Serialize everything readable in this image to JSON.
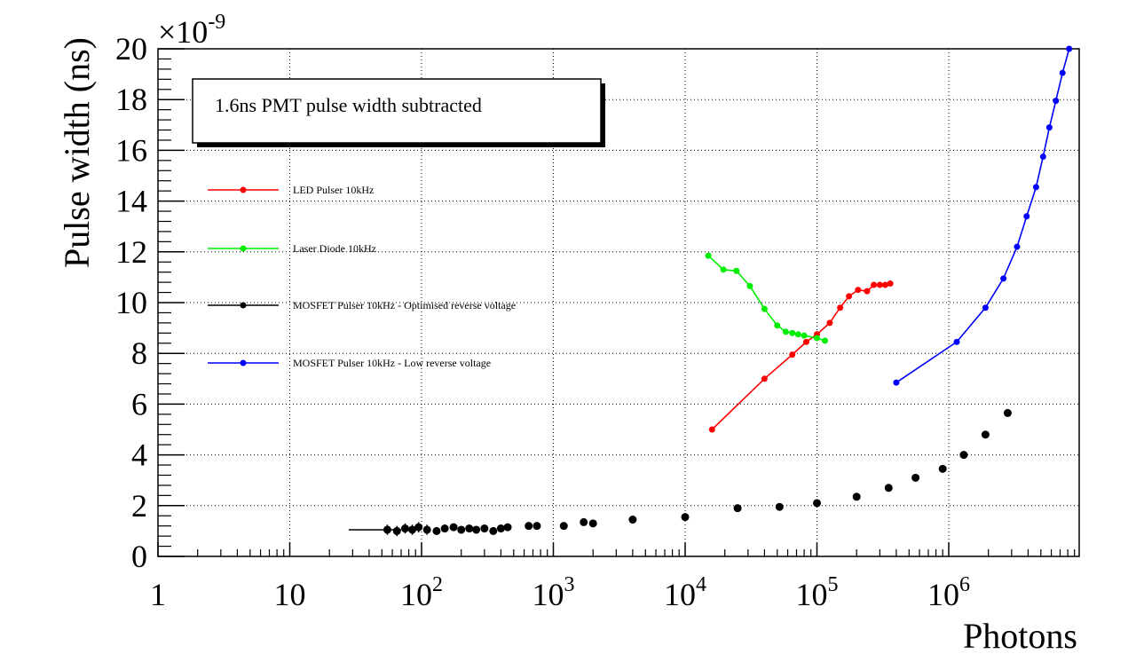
{
  "chart_data": {
    "type": "scatter",
    "title": "",
    "xlabel": "Photons",
    "ylabel": "Pulse width (ns)",
    "y_multiplier": "×10",
    "y_multiplier_exp": "-9",
    "annotation": "1.6ns PMT pulse width subtracted",
    "x_scale": "log",
    "xlim": [
      1,
      9000000
    ],
    "ylim": [
      0,
      20
    ],
    "grid": true,
    "legend_placement": "left",
    "x_ticks": [
      {
        "value": 1,
        "label": "1",
        "sup": ""
      },
      {
        "value": 10,
        "label": "10",
        "sup": ""
      },
      {
        "value": 100,
        "label": "10",
        "sup": "2"
      },
      {
        "value": 1000,
        "label": "10",
        "sup": "3"
      },
      {
        "value": 10000,
        "label": "10",
        "sup": "4"
      },
      {
        "value": 100000,
        "label": "10",
        "sup": "5"
      },
      {
        "value": 1000000,
        "label": "10",
        "sup": "6"
      }
    ],
    "y_ticks": [
      0,
      2,
      4,
      6,
      8,
      10,
      12,
      14,
      16,
      18,
      20
    ],
    "series": [
      {
        "name": "LED Pulser 10kHz",
        "color": "#ff0000",
        "line": true,
        "x": [
          16000,
          40000,
          65000,
          83000,
          100000,
          125000,
          150000,
          175000,
          205000,
          240000,
          270000,
          300000,
          330000,
          360000
        ],
        "y": [
          5.0,
          7.0,
          7.95,
          8.45,
          8.75,
          9.2,
          9.8,
          10.25,
          10.5,
          10.45,
          10.7,
          10.7,
          10.7,
          10.75
        ]
      },
      {
        "name": "Laser Diode 10kHz",
        "color": "#00ee00",
        "line": true,
        "x": [
          15000,
          19500,
          24500,
          31000,
          40000,
          50000,
          58000,
          65000,
          72000,
          80000,
          100000,
          115000
        ],
        "y": [
          11.85,
          11.3,
          11.25,
          10.65,
          9.75,
          9.1,
          8.85,
          8.8,
          8.75,
          8.7,
          8.6,
          8.5
        ]
      },
      {
        "name": "MOSFET Pulser 10kHz - Optimised reverse voltage",
        "color": "#000000",
        "line": false,
        "error_bars": true,
        "x": [
          55,
          65,
          75,
          85,
          95,
          110,
          130,
          150,
          175,
          200,
          230,
          260,
          300,
          350,
          400,
          450,
          650,
          750,
          1200,
          1700,
          2000,
          4000,
          10000,
          25000,
          52000,
          100000,
          200000,
          350000,
          560000,
          900000,
          1300000,
          1900000,
          2800000
        ],
        "y": [
          1.05,
          1.0,
          1.1,
          1.05,
          1.15,
          1.05,
          1.0,
          1.1,
          1.15,
          1.05,
          1.1,
          1.05,
          1.1,
          1.0,
          1.1,
          1.15,
          1.2,
          1.2,
          1.2,
          1.35,
          1.3,
          1.45,
          1.55,
          1.9,
          1.95,
          2.1,
          2.35,
          2.7,
          3.1,
          3.45,
          4.0,
          4.8,
          5.65
        ],
        "x_err_low": [
          27,
          0,
          0,
          0,
          0,
          0,
          0,
          0,
          0,
          0,
          0,
          0,
          0,
          0,
          0,
          0,
          0,
          0,
          0,
          0,
          0,
          0,
          0,
          0,
          0,
          0,
          0,
          0,
          0,
          0,
          0,
          0,
          0
        ],
        "x_err_high": [
          15,
          0,
          0,
          0,
          0,
          0,
          0,
          0,
          0,
          0,
          0,
          0,
          0,
          0,
          0,
          0,
          0,
          0,
          0,
          0,
          0,
          0,
          0,
          0,
          0,
          0,
          0,
          0,
          0,
          0,
          0,
          0,
          0
        ],
        "y_err": [
          0.2,
          0.2,
          0.2,
          0.2,
          0.2,
          0.2,
          0.15,
          0.15,
          0.15,
          0.15,
          0.1,
          0.1,
          0.1,
          0.1,
          0.1,
          0.15,
          0.15,
          0.1,
          0.1,
          0.1,
          0.1,
          0.15,
          0.15,
          0.1,
          0.1,
          0.15,
          0.15,
          0.1,
          0.1,
          0.1,
          0.15,
          0.1,
          0.1
        ]
      },
      {
        "name": "MOSFET Pulser 10kHz - Low reverse voltage",
        "color": "#0000ff",
        "line": true,
        "x": [
          400000,
          1150000,
          1900000,
          2600000,
          3300000,
          3900000,
          4600000,
          5200000,
          5800000,
          6500000,
          7300000,
          8200000
        ],
        "y": [
          6.85,
          8.45,
          9.8,
          10.95,
          12.2,
          13.4,
          14.55,
          15.75,
          16.9,
          17.95,
          19.05,
          20.0
        ]
      }
    ]
  }
}
